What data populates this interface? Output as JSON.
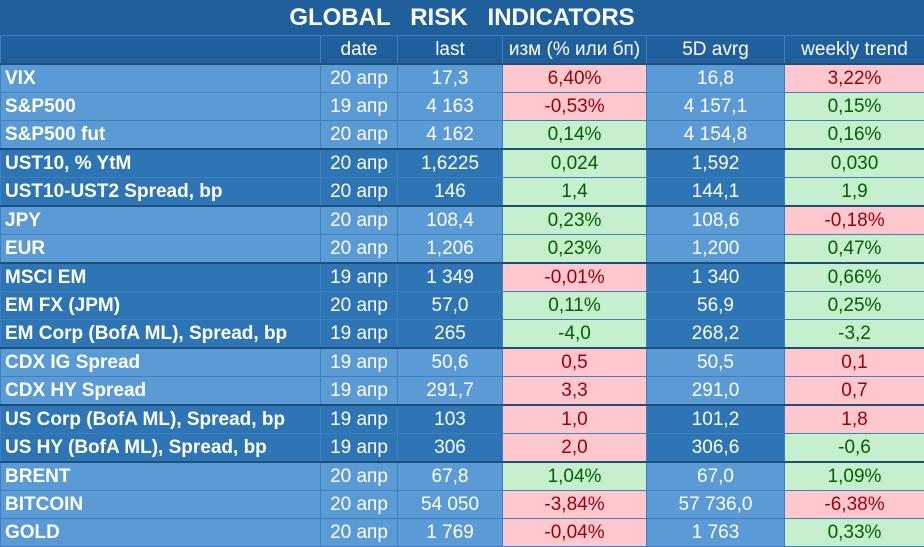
{
  "title": "GLOBAL   RISK   INDICATORS",
  "columns": {
    "name": "",
    "date": "date",
    "last": "last",
    "change": "изм (% или бп)",
    "avg5d": "5D avrg",
    "weekly": "weekly trend"
  },
  "colors": {
    "header_bg": "#1f5f9c",
    "light_group": "#5b9bd5",
    "dark_group": "#2e75b6",
    "positive_bg": "#c6efce",
    "positive_text": "#006100",
    "negative_bg": "#ffc7ce",
    "negative_text": "#9c0006"
  },
  "rows": [
    {
      "name": "VIX",
      "date": "20 апр",
      "last": "17,3",
      "change": "6,40%",
      "change_sign": "neg",
      "avg5d": "16,8",
      "weekly": "3,22%",
      "weekly_sign": "neg",
      "shade": "light",
      "group_start": true
    },
    {
      "name": "S&P500",
      "date": "19 апр",
      "last": "4 163",
      "change": "-0,53%",
      "change_sign": "neg",
      "avg5d": "4 157,1",
      "weekly": "0,15%",
      "weekly_sign": "pos",
      "shade": "light",
      "group_start": false
    },
    {
      "name": "S&P500 fut",
      "date": "20 апр",
      "last": "4 162",
      "change": "0,14%",
      "change_sign": "pos",
      "avg5d": "4 154,8",
      "weekly": "0,16%",
      "weekly_sign": "pos",
      "shade": "light",
      "group_start": false
    },
    {
      "name": "UST10, % YtM",
      "date": "20 апр",
      "last": "1,6225",
      "change": "0,024",
      "change_sign": "pos",
      "avg5d": "1,592",
      "weekly": "0,030",
      "weekly_sign": "pos",
      "shade": "dark",
      "group_start": true
    },
    {
      "name": "UST10-UST2 Spread, bp",
      "date": "20 апр",
      "last": "146",
      "change": "1,4",
      "change_sign": "pos",
      "avg5d": "144,1",
      "weekly": "1,9",
      "weekly_sign": "pos",
      "shade": "dark",
      "group_start": false
    },
    {
      "name": "JPY",
      "date": "20 апр",
      "last": "108,4",
      "change": "0,23%",
      "change_sign": "pos",
      "avg5d": "108,6",
      "weekly": "-0,18%",
      "weekly_sign": "neg",
      "shade": "light",
      "group_start": true
    },
    {
      "name": "EUR",
      "date": "20 апр",
      "last": "1,206",
      "change": "0,23%",
      "change_sign": "pos",
      "avg5d": "1,200",
      "weekly": "0,47%",
      "weekly_sign": "pos",
      "shade": "light",
      "group_start": false
    },
    {
      "name": "MSCI EM",
      "date": "19 апр",
      "last": "1 349",
      "change": "-0,01%",
      "change_sign": "neg",
      "avg5d": "1 340",
      "weekly": "0,66%",
      "weekly_sign": "pos",
      "shade": "dark",
      "group_start": true
    },
    {
      "name": "EM FX (JPM)",
      "date": "20 апр",
      "last": "57,0",
      "change": "0,11%",
      "change_sign": "pos",
      "avg5d": "56,9",
      "weekly": "0,25%",
      "weekly_sign": "pos",
      "shade": "dark",
      "group_start": false
    },
    {
      "name": "EM Corp (BofA ML), Spread, bp",
      "date": "19 апр",
      "last": "265",
      "change": "-4,0",
      "change_sign": "pos",
      "avg5d": "268,2",
      "weekly": "-3,2",
      "weekly_sign": "pos",
      "shade": "dark",
      "group_start": false
    },
    {
      "name": "CDX IG Spread",
      "date": "19 апр",
      "last": "50,6",
      "change": "0,5",
      "change_sign": "neg",
      "avg5d": "50,5",
      "weekly": "0,1",
      "weekly_sign": "neg",
      "shade": "light",
      "group_start": true
    },
    {
      "name": "CDX HY Spread",
      "date": "19 апр",
      "last": "291,7",
      "change": "3,3",
      "change_sign": "neg",
      "avg5d": "291,0",
      "weekly": "0,7",
      "weekly_sign": "neg",
      "shade": "light",
      "group_start": false
    },
    {
      "name": "US Corp (BofA ML), Spread, bp",
      "date": "19 апр",
      "last": "103",
      "change": "1,0",
      "change_sign": "neg",
      "avg5d": "101,2",
      "weekly": "1,8",
      "weekly_sign": "neg",
      "shade": "dark",
      "group_start": true
    },
    {
      "name": "US HY (BofA ML), Spread, bp",
      "date": "19 апр",
      "last": "306",
      "change": "2,0",
      "change_sign": "neg",
      "avg5d": "306,6",
      "weekly": "-0,6",
      "weekly_sign": "pos",
      "shade": "dark",
      "group_start": false
    },
    {
      "name": "BRENT",
      "date": "20 апр",
      "last": "67,8",
      "change": "1,04%",
      "change_sign": "pos",
      "avg5d": "67,0",
      "weekly": "1,09%",
      "weekly_sign": "pos",
      "shade": "light",
      "group_start": true
    },
    {
      "name": "BITCOIN",
      "date": "20 апр",
      "last": "54 050",
      "change": "-3,84%",
      "change_sign": "neg",
      "avg5d": "57 736,0",
      "weekly": "-6,38%",
      "weekly_sign": "neg",
      "shade": "light",
      "group_start": false
    },
    {
      "name": "GOLD",
      "date": "20 апр",
      "last": "1 769",
      "change": "-0,04%",
      "change_sign": "neg",
      "avg5d": "1 763",
      "weekly": "0,33%",
      "weekly_sign": "pos",
      "shade": "light",
      "group_start": false
    }
  ]
}
